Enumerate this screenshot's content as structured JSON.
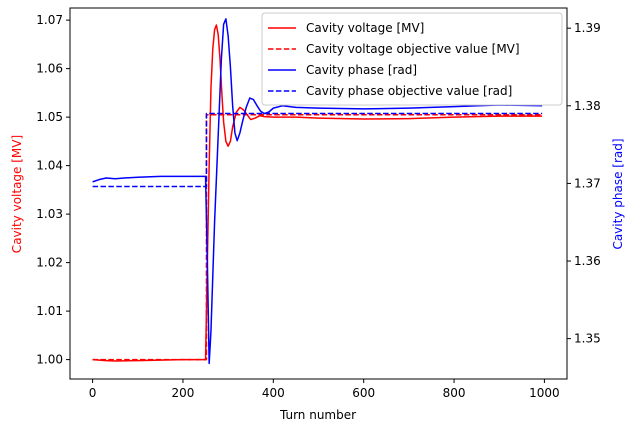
{
  "chart_data": {
    "type": "line",
    "xlabel": "Turn number",
    "ylabel_left": "Cavity voltage [MV]",
    "ylabel_right": "Cavity phase [rad]",
    "xlim": [
      -50,
      1050
    ],
    "ylim_left": [
      0.996,
      1.0725
    ],
    "ylim_right": [
      1.3448,
      1.3926
    ],
    "x_ticks": [
      0,
      200,
      400,
      600,
      800,
      1000
    ],
    "y_left_ticks": [
      1.0,
      1.01,
      1.02,
      1.03,
      1.04,
      1.05,
      1.06,
      1.07
    ],
    "y_right_ticks": [
      1.35,
      1.36,
      1.37,
      1.38,
      1.39
    ],
    "grid": false,
    "legend_position": "top-right",
    "colors": {
      "voltage": "#ff0000",
      "phase": "#0000ff"
    },
    "series": [
      {
        "name": "Cavity voltage [MV]",
        "axis": "left",
        "color": "#ff0000",
        "style": "solid",
        "x": [
          0,
          30,
          50,
          100,
          150,
          200,
          250,
          254,
          258,
          262,
          266,
          270,
          274,
          278,
          282,
          286,
          290,
          295,
          300,
          305,
          310,
          318,
          326,
          334,
          342,
          350,
          360,
          370,
          380,
          400,
          450,
          500,
          600,
          700,
          800,
          900,
          995
        ],
        "y": [
          1.0,
          0.9998,
          0.9997,
          0.9998,
          0.9999,
          1.0,
          1.0,
          1.02,
          1.04,
          1.056,
          1.064,
          1.068,
          1.069,
          1.067,
          1.062,
          1.055,
          1.049,
          1.045,
          1.044,
          1.045,
          1.048,
          1.051,
          1.052,
          1.0515,
          1.0505,
          1.0495,
          1.0498,
          1.0503,
          1.0501,
          1.05,
          1.05,
          1.0498,
          1.0496,
          1.0497,
          1.05,
          1.0502,
          1.0502
        ]
      },
      {
        "name": "Cavity voltage objective value [MV]",
        "axis": "left",
        "color": "#ff0000",
        "style": "dashed",
        "x": [
          0,
          252,
          252,
          995
        ],
        "y": [
          1.0,
          1.0,
          1.0505,
          1.0505
        ]
      },
      {
        "name": "Cavity phase [rad]",
        "axis": "right",
        "color": "#0000ff",
        "style": "solid",
        "x": [
          0,
          15,
          30,
          50,
          70,
          100,
          150,
          200,
          250,
          254,
          258,
          262,
          266,
          270,
          275,
          280,
          285,
          290,
          295,
          300,
          305,
          310,
          315,
          320,
          326,
          332,
          340,
          348,
          356,
          364,
          372,
          380,
          390,
          400,
          420,
          450,
          500,
          600,
          700,
          800,
          900,
          995
        ],
        "y": [
          1.3702,
          1.3705,
          1.3707,
          1.3706,
          1.3707,
          1.3708,
          1.3709,
          1.3709,
          1.3709,
          1.36,
          1.3468,
          1.351,
          1.358,
          1.365,
          1.372,
          1.379,
          1.386,
          1.3905,
          1.3912,
          1.389,
          1.385,
          1.38,
          1.3765,
          1.3755,
          1.3765,
          1.378,
          1.3798,
          1.381,
          1.3808,
          1.38,
          1.3793,
          1.379,
          1.3792,
          1.3797,
          1.38,
          1.3798,
          1.3797,
          1.3796,
          1.3797,
          1.3799,
          1.3801,
          1.38
        ]
      },
      {
        "name": "Cavity phase objective value [rad]",
        "axis": "right",
        "color": "#0000ff",
        "style": "dashed",
        "x": [
          0,
          252,
          252,
          995
        ],
        "y": [
          1.3696,
          1.3696,
          1.379,
          1.379
        ]
      }
    ]
  }
}
